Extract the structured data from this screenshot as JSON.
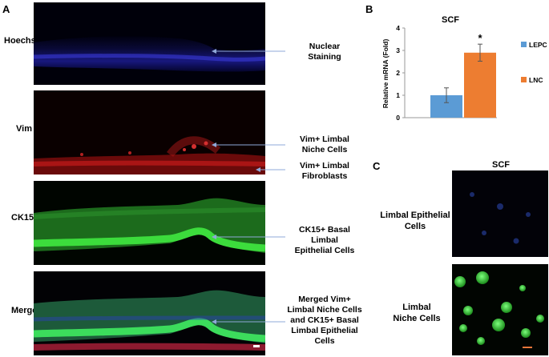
{
  "panel_a": {
    "letter": "A",
    "rows": [
      {
        "label": "Hoechst",
        "annotations": [
          "Nuclear\nStaining"
        ]
      },
      {
        "label": "Vim",
        "annotations": [
          "Vim+ Limbal\nNiche Cells",
          "Vim+ Limbal\nFibroblasts"
        ]
      },
      {
        "label": "CK15",
        "annotations": [
          "CK15+ Basal\nLimbal\nEpithelial Cells"
        ]
      },
      {
        "label": "Merge",
        "annotations": [
          "Merged Vim+\nLimbal Niche Cells\nand CK15+ Basal\nLimbal Epithelial\nCells"
        ]
      }
    ]
  },
  "panel_b": {
    "letter": "B",
    "chart_data": {
      "type": "bar",
      "title": "SCF",
      "ylabel": "Relative mRNA (Fold)",
      "xlabel": "",
      "ylim": [
        0,
        4
      ],
      "yticks": [
        "0",
        "1",
        "2",
        "3",
        "4"
      ],
      "series": [
        {
          "name": "LEPC",
          "value": 1.0,
          "error": 0.33,
          "color": "#5b9bd5"
        },
        {
          "name": "LNC",
          "value": 2.9,
          "error": 0.38,
          "color": "#ed7d31"
        }
      ],
      "annotation": "*",
      "legend_position": "right"
    }
  },
  "panel_c": {
    "letter": "C",
    "title": "SCF",
    "rows": [
      {
        "label": "Limbal Epithelial\nCells"
      },
      {
        "label": "Limbal\nNiche Cells"
      }
    ]
  }
}
